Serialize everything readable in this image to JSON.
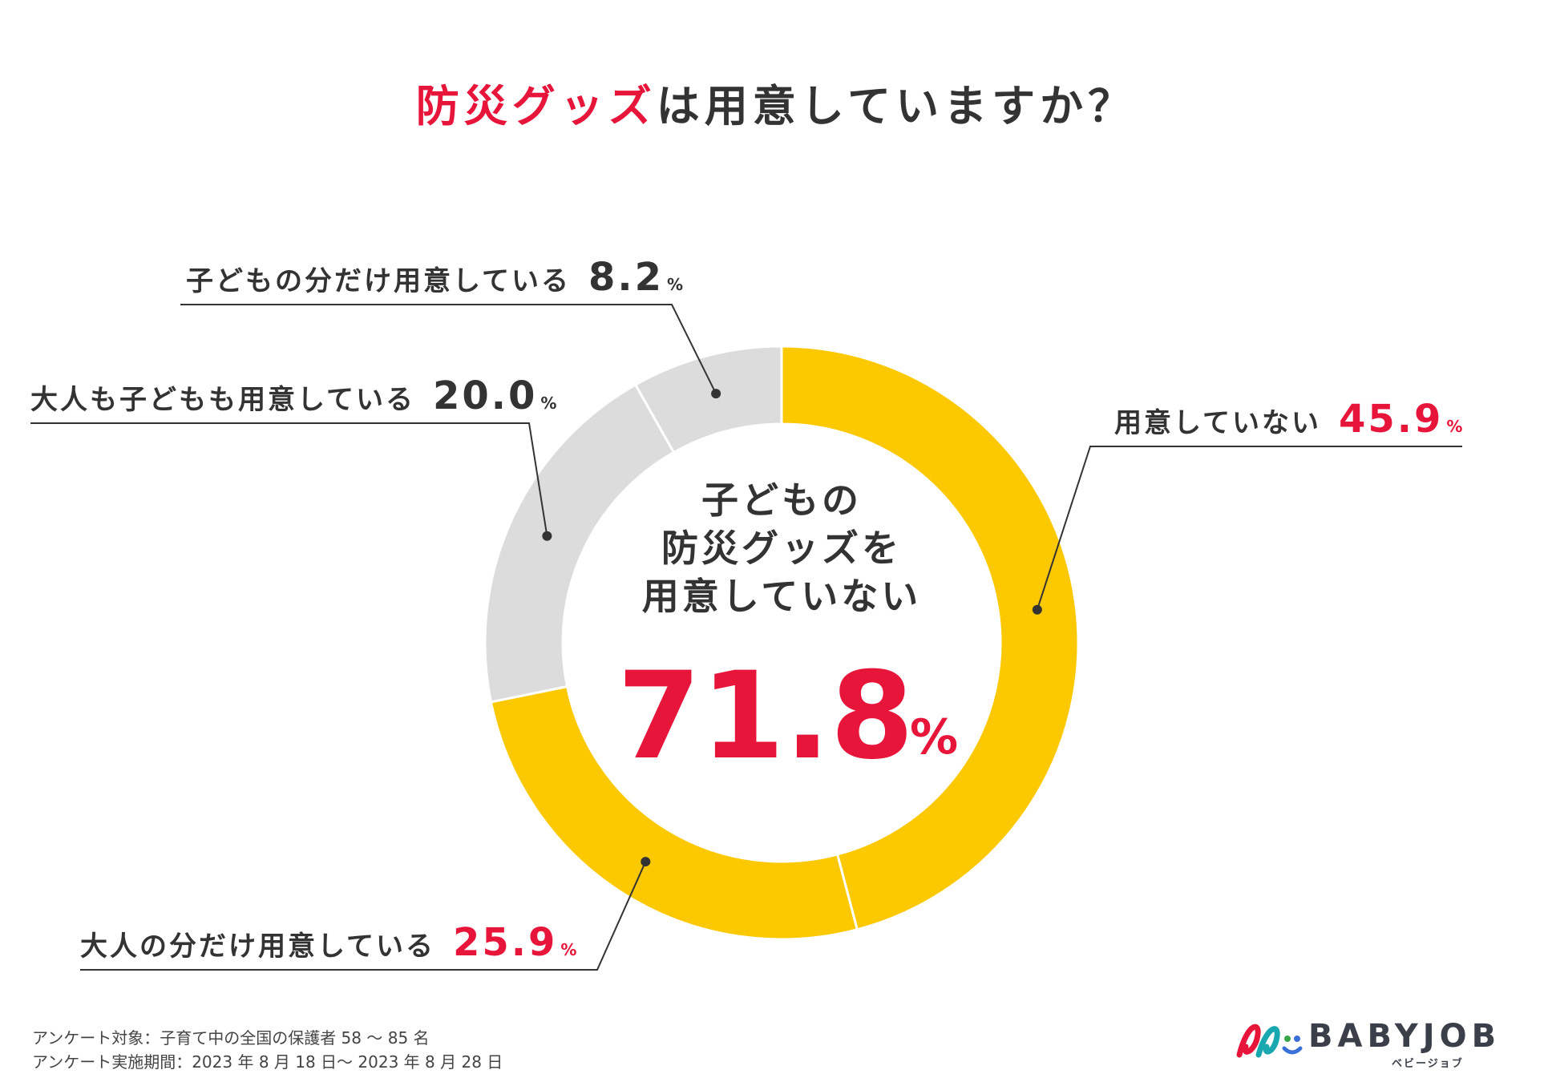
{
  "title": {
    "accent": "防災グッズ",
    "rest": "は用意していますか？"
  },
  "chart_data": {
    "type": "pie",
    "variant": "donut",
    "title": "防災グッズは用意していますか？",
    "unit": "%",
    "segments": [
      {
        "name": "用意していない",
        "value": 45.9,
        "display": "45.9",
        "color": "#fcc800",
        "value_color": "#e8153a"
      },
      {
        "name": "大人の分だけ用意している",
        "value": 25.9,
        "display": "25.9",
        "color": "#fcc800",
        "value_color": "#e8153a"
      },
      {
        "name": "大人も子どもも用意している",
        "value": 20.0,
        "display": "20.0",
        "color": "#dcdcdc",
        "value_color": "#333333"
      },
      {
        "name": "子どもの分だけ用意している",
        "value": 8.2,
        "display": "8.2",
        "color": "#dcdcdc",
        "value_color": "#333333"
      }
    ],
    "center": {
      "lines": [
        "子どもの",
        "防災グッズを",
        "用意していない"
      ],
      "value": "71.8",
      "unit": "%"
    }
  },
  "footnote": {
    "line1": "アンケート対象：子育て中の全国の保護者 58 ～ 85 名",
    "line2": "アンケート実施期間：2023 年 8 月 18 日～ 2023 年 8 月 28 日"
  },
  "logo": {
    "text": "BABYJOB",
    "sub": "ベビージョブ"
  },
  "colors": {
    "accent": "#e8153a",
    "yellow": "#fcc800",
    "gray": "#dcdcdc",
    "text": "#333333"
  }
}
